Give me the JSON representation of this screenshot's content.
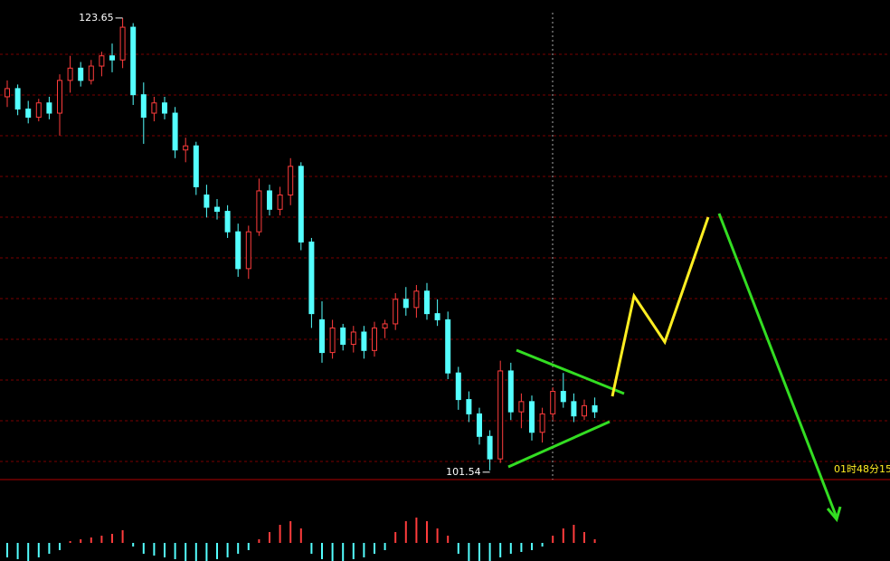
{
  "chart_data": {
    "type": "candlestick",
    "open": [
      119.8,
      120.2,
      119.2,
      118.8,
      119.5,
      119.0,
      120.6,
      121.2,
      120.6,
      121.3,
      121.8,
      121.6,
      123.2,
      119.9,
      119.0,
      119.5,
      119.0,
      117.2,
      117.4,
      115.0,
      114.4,
      114.2,
      113.2,
      111.4,
      113.2,
      115.2,
      114.3,
      115.0,
      116.4,
      112.7,
      108.9,
      107.3,
      108.5,
      107.7,
      108.3,
      107.4,
      108.5,
      108.7,
      109.9,
      109.5,
      110.3,
      109.2,
      108.9,
      106.3,
      105.0,
      104.3,
      103.2,
      102.1,
      106.4,
      104.4,
      104.9,
      103.4,
      104.3,
      105.4,
      104.9,
      104.2,
      104.7
    ],
    "high": [
      120.6,
      120.4,
      119.6,
      119.7,
      119.8,
      120.9,
      121.8,
      121.5,
      121.6,
      122.0,
      122.4,
      123.65,
      123.4,
      120.5,
      119.8,
      119.8,
      119.3,
      117.8,
      117.6,
      115.5,
      114.8,
      114.5,
      113.6,
      113.5,
      115.8,
      115.5,
      115.4,
      116.8,
      116.6,
      112.9,
      109.8,
      108.9,
      108.7,
      108.6,
      108.6,
      108.8,
      108.9,
      110.2,
      110.5,
      110.6,
      110.7,
      109.9,
      109.3,
      106.6,
      105.4,
      104.6,
      103.5,
      106.9,
      106.8,
      105.3,
      105.2,
      104.6,
      105.6,
      106.3,
      105.3,
      105.0,
      105.1
    ],
    "low": [
      119.3,
      118.9,
      118.5,
      118.6,
      118.7,
      117.9,
      120.0,
      120.3,
      120.4,
      120.8,
      121.0,
      121.2,
      119.4,
      117.5,
      118.6,
      118.7,
      116.8,
      116.6,
      115.0,
      113.9,
      113.8,
      112.9,
      111.0,
      110.9,
      113.0,
      114.0,
      114.0,
      114.5,
      112.3,
      108.5,
      106.8,
      107.0,
      107.4,
      107.3,
      107.0,
      107.1,
      108.0,
      108.4,
      109.1,
      109.0,
      108.9,
      108.6,
      106.0,
      104.5,
      103.9,
      102.8,
      101.54,
      101.9,
      104.0,
      103.6,
      103.0,
      102.9,
      104.0,
      104.6,
      103.9,
      104.0,
      104.1
    ],
    "close": [
      120.2,
      119.2,
      118.8,
      119.5,
      119.0,
      120.6,
      121.2,
      120.6,
      121.3,
      121.8,
      121.6,
      123.2,
      119.9,
      118.8,
      119.5,
      119.0,
      117.2,
      117.4,
      115.4,
      114.4,
      114.2,
      113.2,
      111.4,
      113.2,
      115.2,
      114.3,
      115.0,
      116.4,
      112.7,
      109.2,
      107.3,
      108.5,
      107.7,
      108.3,
      107.4,
      108.5,
      108.7,
      109.9,
      109.5,
      110.3,
      109.2,
      108.9,
      106.3,
      105.0,
      104.3,
      103.2,
      102.1,
      106.4,
      104.4,
      104.9,
      103.4,
      104.3,
      105.4,
      104.9,
      104.2,
      104.7,
      104.4
    ],
    "ylim": [
      101.09,
      124.53
    ],
    "up_color": "#ff3c3c",
    "down_color": "#54ffff",
    "max_label_index": 11,
    "min_label_index": 46,
    "crosshair_label": "01时48分15",
    "macd": [
      -0.4,
      -0.45,
      -0.5,
      -0.4,
      -0.3,
      -0.2,
      0.05,
      0.1,
      0.15,
      0.2,
      0.25,
      0.35,
      -0.1,
      -0.3,
      -0.35,
      -0.4,
      -0.45,
      -0.5,
      -0.5,
      -0.5,
      -0.45,
      -0.4,
      -0.3,
      -0.2,
      0.1,
      0.3,
      0.5,
      0.6,
      0.4,
      -0.3,
      -0.45,
      -0.5,
      -0.5,
      -0.45,
      -0.4,
      -0.3,
      -0.2,
      0.3,
      0.6,
      0.7,
      0.6,
      0.4,
      0.2,
      -0.3,
      -0.5,
      -0.5,
      -0.5,
      -0.4,
      -0.3,
      -0.25,
      -0.2,
      -0.1,
      0.2,
      0.4,
      0.5,
      0.3,
      0.1
    ],
    "macd_ylim": [
      -0.5,
      1.5
    ]
  }
}
